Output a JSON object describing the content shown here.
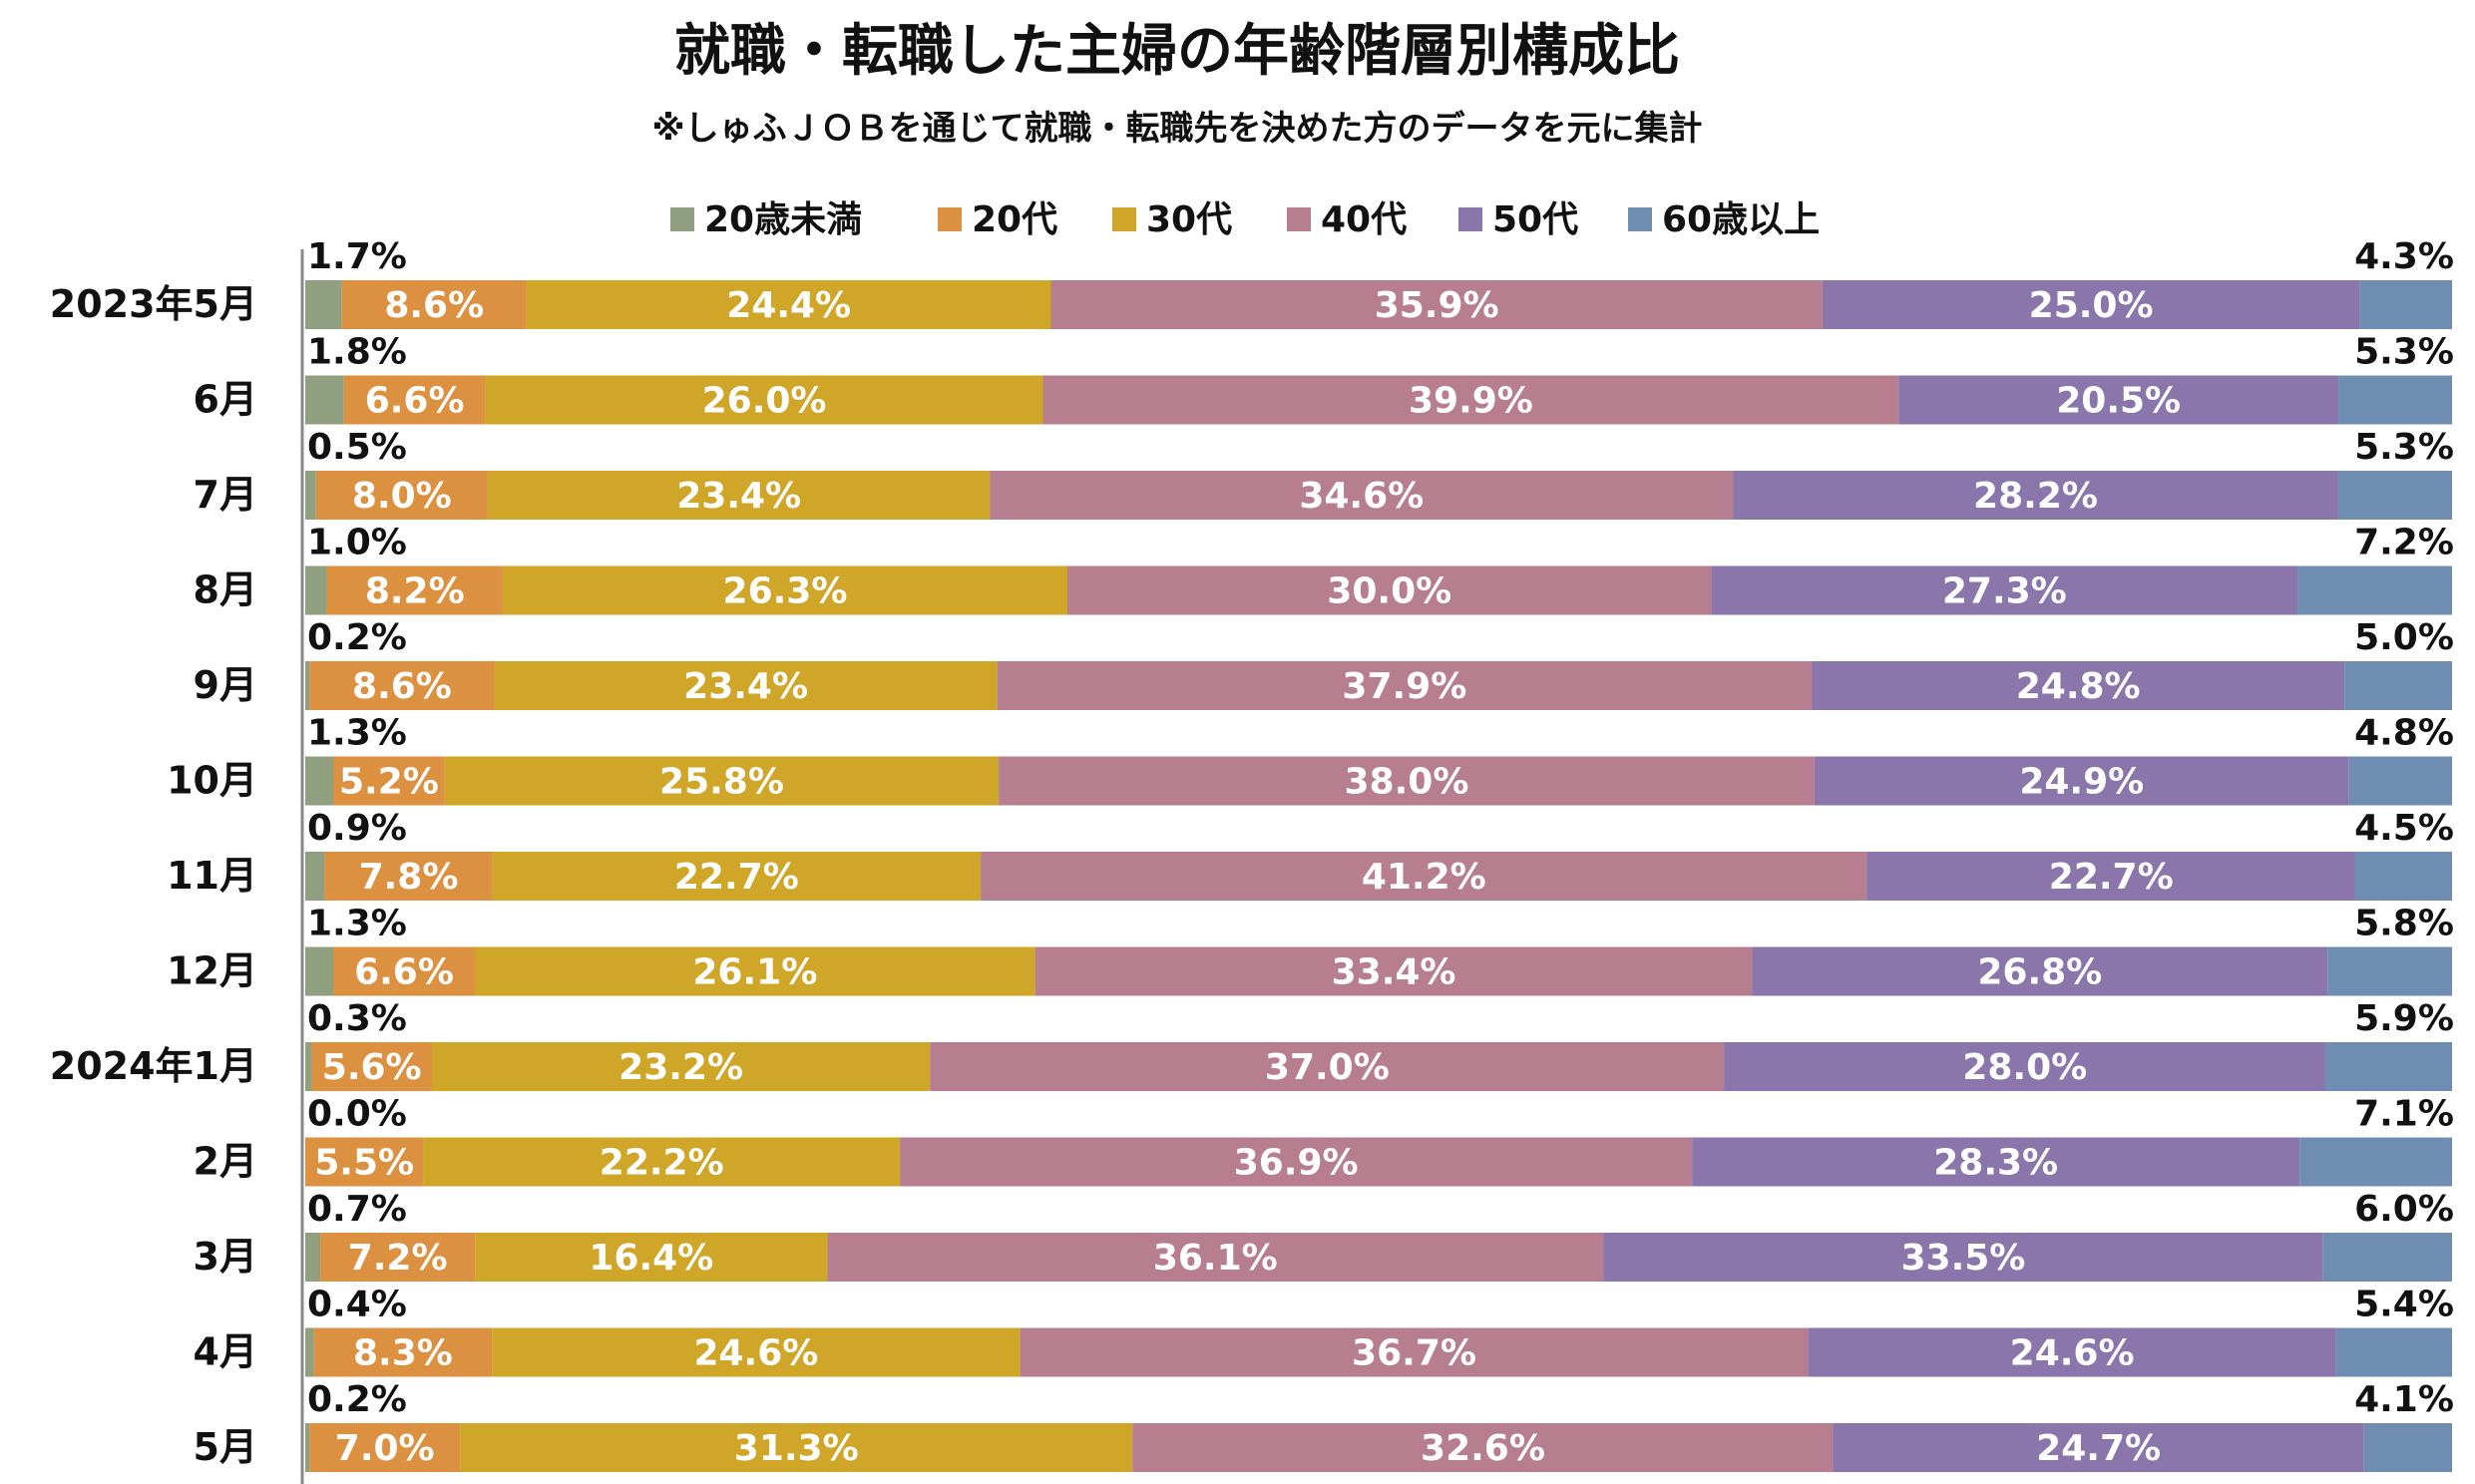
{
  "chart_data": {
    "type": "bar",
    "orientation": "horizontal-stacked-100",
    "title": "就職・転職した主婦の年齢階層別構成比",
    "subtitle": "※しゅふＪＯＢを通じて就職・転職先を決めた方のデータを元に集計",
    "legend_position": "top",
    "categories": [
      "2023年5月",
      "6月",
      "7月",
      "8月",
      "9月",
      "10月",
      "11月",
      "12月",
      "2024年1月",
      "2月",
      "3月",
      "4月",
      "5月"
    ],
    "series": [
      {
        "name": "20歳未満",
        "color": "#8f9f7f",
        "values": [
          1.7,
          1.8,
          0.5,
          1.0,
          0.2,
          1.3,
          0.9,
          1.3,
          0.3,
          0.0,
          0.7,
          0.4,
          0.2
        ],
        "labels": [
          "1.7%",
          "1.8%",
          "0.5%",
          "1.0%",
          "0.2%",
          "1.3%",
          "0.9%",
          "1.3%",
          "0.3%",
          "0.0%",
          "0.7%",
          "0.4%",
          "0.2%"
        ]
      },
      {
        "name": "20代",
        "color": "#dc9140",
        "values": [
          8.6,
          6.6,
          8.0,
          8.2,
          8.6,
          5.2,
          7.8,
          6.6,
          5.6,
          5.5,
          7.2,
          8.3,
          7.0
        ],
        "labels": [
          "8.6%",
          "6.6%",
          "8.0%",
          "8.2%",
          "8.6%",
          "5.2%",
          "7.8%",
          "6.6%",
          "5.6%",
          "5.5%",
          "7.2%",
          "8.3%",
          "7.0%"
        ]
      },
      {
        "name": "30代",
        "color": "#cfa627",
        "values": [
          24.4,
          26.0,
          23.4,
          26.3,
          23.4,
          25.8,
          22.7,
          26.1,
          23.2,
          22.2,
          16.4,
          24.6,
          31.3
        ],
        "labels": [
          "24.4%",
          "26.0%",
          "23.4%",
          "26.3%",
          "23.4%",
          "25.8%",
          "22.7%",
          "26.1%",
          "23.2%",
          "22.2%",
          "16.4%",
          "24.6%",
          "31.3%"
        ]
      },
      {
        "name": "40代",
        "color": "#b77e90",
        "values": [
          35.9,
          39.9,
          34.6,
          30.0,
          37.9,
          38.0,
          41.2,
          33.4,
          37.0,
          36.9,
          36.1,
          36.7,
          32.6
        ],
        "labels": [
          "35.9%",
          "39.9%",
          "34.6%",
          "30.0%",
          "37.9%",
          "38.0%",
          "41.2%",
          "33.4%",
          "37.0%",
          "36.9%",
          "36.1%",
          "36.7%",
          "32.6%"
        ]
      },
      {
        "name": "50代",
        "color": "#8a76ab",
        "values": [
          25.0,
          20.5,
          28.2,
          27.3,
          24.8,
          24.9,
          22.7,
          26.8,
          28.0,
          28.3,
          33.5,
          24.6,
          24.7
        ],
        "labels": [
          "25.0%",
          "20.5%",
          "28.2%",
          "27.3%",
          "24.8%",
          "24.9%",
          "22.7%",
          "26.8%",
          "28.0%",
          "28.3%",
          "33.5%",
          "24.6%",
          "24.7%"
        ]
      },
      {
        "name": "60歳以上",
        "color": "#6f8db0",
        "values": [
          4.3,
          5.3,
          5.3,
          7.2,
          5.0,
          4.8,
          4.5,
          5.8,
          5.9,
          7.1,
          6.0,
          5.4,
          4.1
        ],
        "labels": [
          "4.3%",
          "5.3%",
          "5.3%",
          "7.2%",
          "5.0%",
          "4.8%",
          "4.5%",
          "5.8%",
          "5.9%",
          "7.1%",
          "6.0%",
          "5.4%",
          "4.1%"
        ]
      }
    ]
  }
}
